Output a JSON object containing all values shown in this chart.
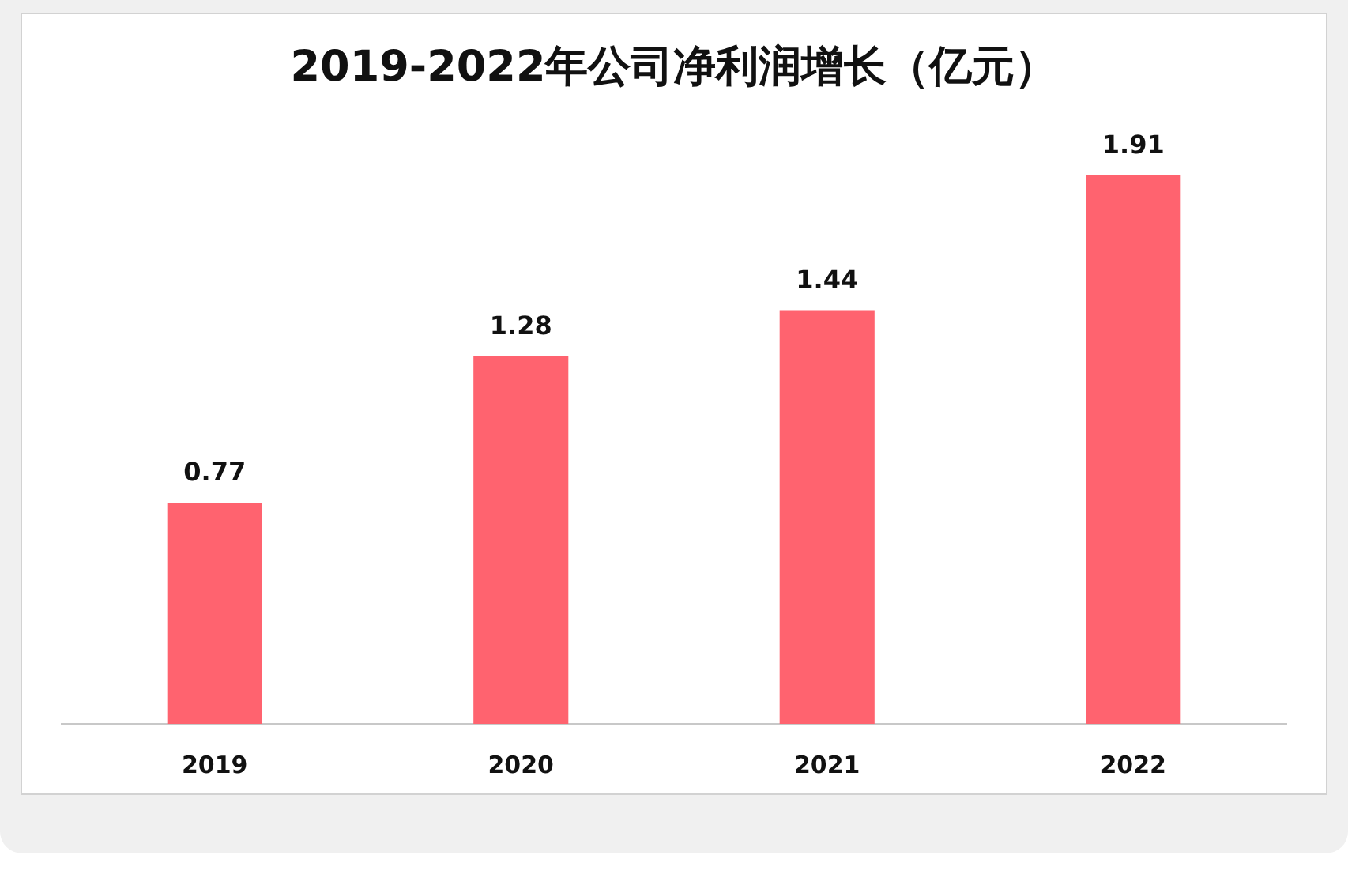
{
  "chart_data": {
    "type": "bar",
    "title": "2019-2022年公司净利润增长（亿元）",
    "categories": [
      "2019",
      "2020",
      "2021",
      "2022"
    ],
    "values": [
      0.77,
      1.28,
      1.44,
      1.91
    ],
    "color": "#ff636f",
    "data_labels": true,
    "tick_labels": "x",
    "grid": false
  }
}
